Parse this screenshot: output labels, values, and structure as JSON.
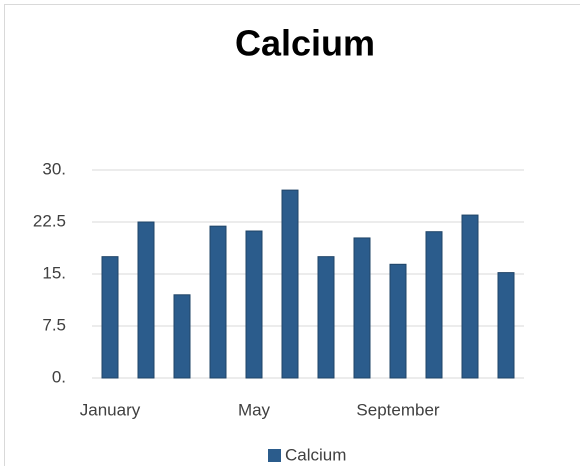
{
  "chart_data": {
    "type": "bar",
    "title": "Calcium",
    "categories": [
      "January",
      null,
      null,
      null,
      "May",
      null,
      null,
      null,
      "September",
      null,
      null,
      null
    ],
    "series": [
      {
        "name": "Calcium",
        "color": "#2b5c8c",
        "values": [
          17.5,
          22.5,
          12,
          21.9,
          21.2,
          27.1,
          17.5,
          20.2,
          16.4,
          21.1,
          23.5,
          15.2
        ]
      }
    ],
    "ylim": [
      0,
      30
    ],
    "yticks": [
      {
        "value": 0,
        "label": "0."
      },
      7.5,
      {
        "value": 15,
        "label": "15."
      },
      22.5,
      {
        "value": 30,
        "label": "30."
      }
    ],
    "grid": true,
    "legend": "bottom"
  }
}
